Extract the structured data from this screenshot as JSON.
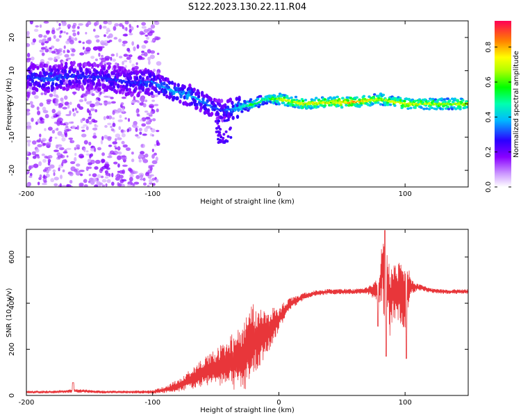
{
  "title": "S122.2023.130.22.11.R04",
  "spectrogram": {
    "chart_data": {
      "type": "heatmap",
      "xlabel": "Height of straight line (km)",
      "ylabel": "Frequency (Hz)",
      "xlim": [
        -200,
        150
      ],
      "ylim": [
        -25,
        25
      ],
      "xticks": [
        "-200",
        "-100",
        "0",
        "100"
      ],
      "yticks": [
        "-20",
        "-10",
        "0",
        "10",
        "20"
      ],
      "colorbar": {
        "label": "Normalized spectral amplitude",
        "range": [
          0,
          0.95
        ],
        "ticks": [
          "0.0",
          "0.2",
          "0.4",
          "0.6",
          "0.8"
        ],
        "colormap": "rainbow"
      },
      "ridge": [
        {
          "x": -200,
          "y": 8,
          "amp": 0.3
        },
        {
          "x": -180,
          "y": 7.5,
          "amp": 0.35
        },
        {
          "x": -160,
          "y": 8.5,
          "amp": 0.3
        },
        {
          "x": -140,
          "y": 8,
          "amp": 0.3
        },
        {
          "x": -120,
          "y": 6.5,
          "amp": 0.3
        },
        {
          "x": -100,
          "y": 6.5,
          "amp": 0.35
        },
        {
          "x": -85,
          "y": 4,
          "amp": 0.4
        },
        {
          "x": -70,
          "y": 2.5,
          "amp": 0.4
        },
        {
          "x": -55,
          "y": -0.5,
          "amp": 0.35
        },
        {
          "x": -45,
          "y": -2,
          "amp": 0.3
        },
        {
          "x": -35,
          "y": -1.5,
          "amp": 0.4
        },
        {
          "x": -20,
          "y": 0,
          "amp": 0.6
        },
        {
          "x": -10,
          "y": 1.5,
          "amp": 0.5
        },
        {
          "x": 0,
          "y": 1.5,
          "amp": 0.7
        },
        {
          "x": 20,
          "y": 0,
          "amp": 0.75
        },
        {
          "x": 40,
          "y": 0.5,
          "amp": 0.75
        },
        {
          "x": 60,
          "y": 0.5,
          "amp": 0.85
        },
        {
          "x": 80,
          "y": 1.5,
          "amp": 0.7
        },
        {
          "x": 100,
          "y": 0,
          "amp": 0.75
        },
        {
          "x": 120,
          "y": 0,
          "amp": 0.7
        },
        {
          "x": 150,
          "y": 0,
          "amp": 0.7
        }
      ]
    }
  },
  "snr": {
    "chart_data": {
      "type": "line",
      "xlabel": "Height of straight line (km)",
      "ylabel": "SNR (10 * v/v)",
      "xlim": [
        -200,
        150
      ],
      "ylim": [
        0,
        720
      ],
      "xticks": [
        "-200",
        "-100",
        "0",
        "100"
      ],
      "yticks": [
        "0",
        "200",
        "400",
        "600"
      ],
      "color": "#e8363a",
      "series": [
        {
          "x": [
            -200,
            -180,
            -160,
            -140,
            -120,
            -100,
            -90,
            -80,
            -70,
            -60,
            -50,
            -40,
            -30,
            -25,
            -20,
            -15,
            -10,
            -5,
            0,
            5,
            10,
            20,
            30,
            40,
            50,
            60,
            70,
            80,
            82,
            84,
            86,
            88,
            90,
            95,
            100,
            105,
            110,
            120,
            130,
            140,
            150
          ],
          "y": [
            15,
            15,
            20,
            15,
            15,
            15,
            25,
            40,
            70,
            100,
            120,
            140,
            160,
            200,
            240,
            260,
            270,
            300,
            330,
            370,
            400,
            430,
            445,
            450,
            450,
            450,
            455,
            460,
            560,
            450,
            500,
            400,
            460,
            450,
            440,
            470,
            470,
            455,
            450,
            450,
            450
          ],
          "spread": [
            6,
            6,
            8,
            6,
            6,
            8,
            15,
            30,
            45,
            60,
            80,
            110,
            150,
            170,
            160,
            130,
            100,
            80,
            50,
            40,
            25,
            15,
            12,
            12,
            12,
            12,
            15,
            60,
            150,
            180,
            140,
            160,
            120,
            140,
            180,
            30,
            15,
            10,
            10,
            10,
            10
          ]
        }
      ]
    }
  }
}
